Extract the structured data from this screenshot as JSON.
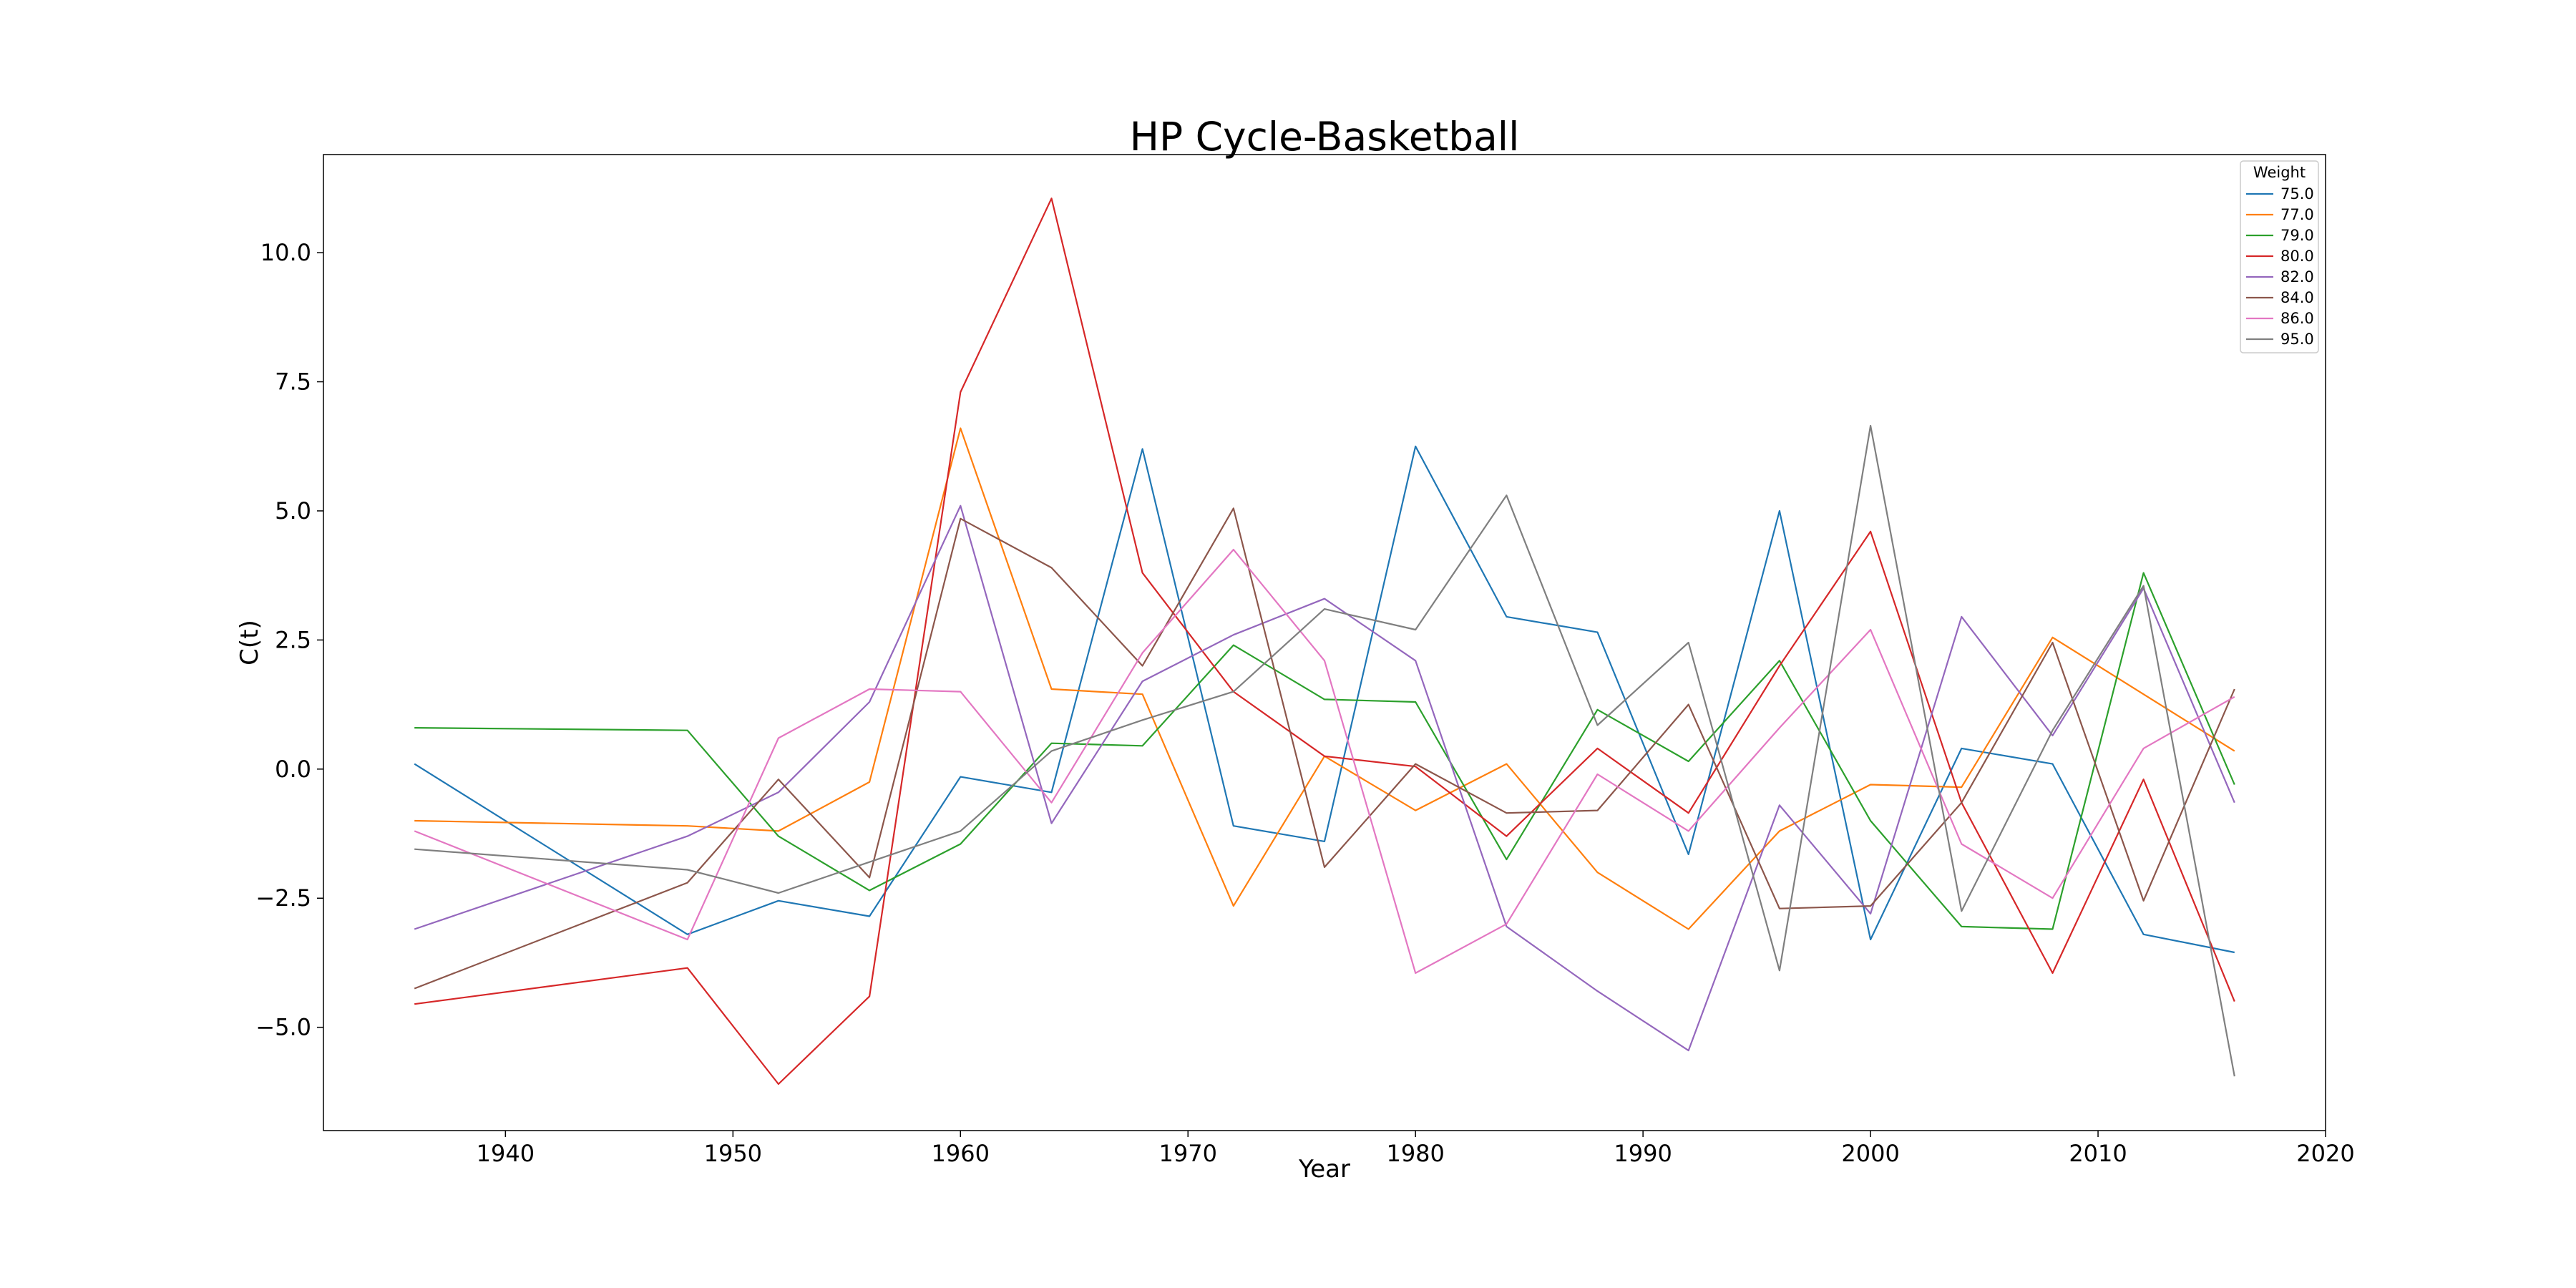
{
  "chart_data": {
    "type": "line",
    "title": "HP Cycle-Basketball",
    "xlabel": "Year",
    "ylabel": "C(t)",
    "xlim": [
      1932,
      2020
    ],
    "ylim": [
      -7.0,
      11.9
    ],
    "xticks": [
      1940,
      1950,
      1960,
      1970,
      1980,
      1990,
      2000,
      2010,
      2020
    ],
    "xtick_labels": [
      "1940",
      "1950",
      "1960",
      "1970",
      "1980",
      "1990",
      "2000",
      "2010",
      "2020"
    ],
    "yticks": [
      -5.0,
      -2.5,
      0.0,
      2.5,
      5.0,
      7.5,
      10.0
    ],
    "ytick_labels": [
      "−5.0",
      "−2.5",
      "0.0",
      "2.5",
      "5.0",
      "7.5",
      "10.0"
    ],
    "grid": false,
    "legend": {
      "title": "Weight",
      "position": "top-right"
    },
    "x": [
      1936,
      1948,
      1952,
      1956,
      1960,
      1964,
      1968,
      1972,
      1976,
      1980,
      1984,
      1988,
      1992,
      1996,
      2000,
      2004,
      2008,
      2012,
      2016
    ],
    "series": [
      {
        "name": "75.0",
        "color": "#1f77b4",
        "values": [
          0.1,
          -3.2,
          -2.55,
          -2.85,
          -0.15,
          -0.45,
          6.2,
          -1.1,
          -1.4,
          6.25,
          2.95,
          2.65,
          -1.65,
          5.0,
          -3.3,
          0.4,
          0.1,
          -3.2,
          -3.55
        ]
      },
      {
        "name": "77.0",
        "color": "#ff7f0e",
        "values": [
          -1.0,
          -1.1,
          -1.2,
          -0.25,
          6.6,
          1.55,
          1.45,
          -2.65,
          0.25,
          -0.8,
          0.1,
          -2.0,
          -3.1,
          -1.2,
          -0.3,
          -0.35,
          2.55,
          1.45,
          0.35
        ]
      },
      {
        "name": "79.0",
        "color": "#2ca02c",
        "values": [
          0.8,
          0.75,
          -1.3,
          -2.35,
          -1.45,
          0.5,
          0.45,
          2.4,
          1.35,
          1.3,
          -1.75,
          1.15,
          0.15,
          2.1,
          -1.0,
          -3.05,
          -3.1,
          3.8,
          -0.3
        ]
      },
      {
        "name": "80.0",
        "color": "#d62728",
        "values": [
          -4.55,
          -3.85,
          -6.1,
          -4.4,
          7.3,
          11.05,
          3.8,
          1.5,
          0.25,
          0.05,
          -1.3,
          0.4,
          -0.85,
          2.0,
          4.6,
          -0.65,
          -3.95,
          -0.2,
          -4.5
        ]
      },
      {
        "name": "82.0",
        "color": "#9467bd",
        "values": [
          -3.1,
          -1.3,
          -0.45,
          1.3,
          5.1,
          -1.05,
          1.7,
          2.6,
          3.3,
          2.1,
          -3.05,
          -4.3,
          -5.45,
          -0.7,
          -2.8,
          2.95,
          0.65,
          3.5,
          -0.65
        ]
      },
      {
        "name": "84.0",
        "color": "#8c564b",
        "values": [
          -4.25,
          -2.2,
          -0.2,
          -2.1,
          4.85,
          3.9,
          2.0,
          5.05,
          -1.9,
          0.1,
          -0.85,
          -0.8,
          1.25,
          -2.7,
          -2.65,
          -0.65,
          2.45,
          -2.55,
          1.55
        ]
      },
      {
        "name": "86.0",
        "color": "#e377c2",
        "values": [
          -1.2,
          -3.3,
          0.6,
          1.55,
          1.5,
          -0.65,
          2.25,
          4.25,
          2.1,
          -3.95,
          -3.0,
          -0.1,
          -1.2,
          0.8,
          2.7,
          -1.45,
          -2.5,
          0.4,
          1.4
        ]
      },
      {
        "name": "95.0",
        "color": "#7f7f7f",
        "values": [
          -1.55,
          -1.95,
          -2.4,
          -1.8,
          -1.2,
          0.35,
          0.95,
          1.5,
          3.1,
          2.7,
          5.3,
          0.85,
          2.45,
          -3.9,
          6.65,
          -2.75,
          0.75,
          3.55,
          -5.95
        ]
      }
    ]
  }
}
